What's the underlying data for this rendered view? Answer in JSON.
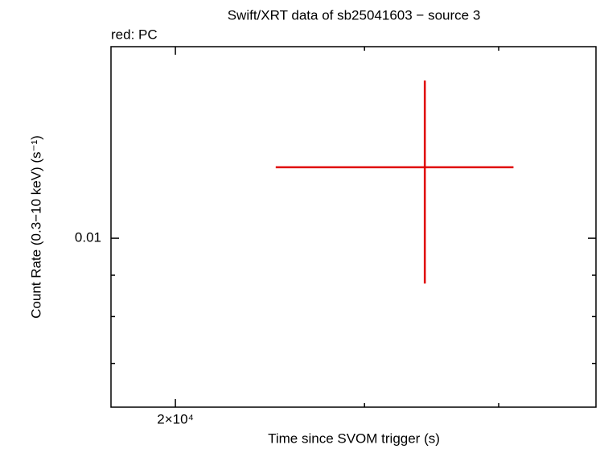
{
  "chart_data": {
    "type": "errorbar",
    "title": "Swift/XRT data of sb25041603 − source 3",
    "xlabel": "Time since SVOM trigger (s)",
    "ylabel": "Count Rate (0.3−10 keV) (s⁻¹)",
    "xlog": true,
    "ylog": true,
    "xlim": [
      17420,
      49280
    ],
    "ylim": [
      0.00618,
      0.01726
    ],
    "xticks": [
      {
        "value": 20000,
        "label": "2×10⁴"
      }
    ],
    "xminor": [
      30000,
      40000
    ],
    "yticks": [
      0.01
    ],
    "yminor": [
      0.009,
      0.008,
      0.007
    ],
    "series": [
      {
        "name": "red: PC",
        "color": "#e00000",
        "x": [
          34140
        ],
        "xlo": [
          24800
        ],
        "xhi": [
          41290
        ],
        "values": [
          0.01224
        ],
        "ylo": [
          0.00879
        ],
        "yhi": [
          0.01567
        ]
      }
    ]
  }
}
